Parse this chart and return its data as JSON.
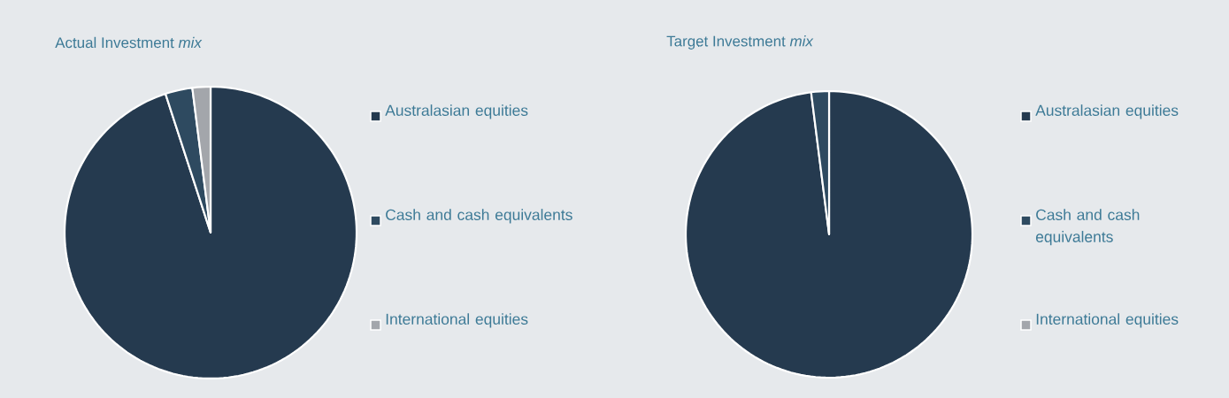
{
  "chart_data": [
    {
      "type": "pie",
      "title": "Actual Investment *mix*",
      "categories": [
        "Australasian equities",
        "Cash and cash equivalents",
        "International equities"
      ],
      "values": [
        95,
        3,
        2
      ],
      "colors": [
        "#253a4f",
        "#2e4a60",
        "#a3a6ab"
      ],
      "legend": "right"
    },
    {
      "type": "pie",
      "title": "Target Investment *mix*",
      "categories": [
        "Australasian equities",
        "Cash and cash equivalents",
        "International equities"
      ],
      "values": [
        98,
        2,
        0
      ],
      "colors": [
        "#253a4f",
        "#2e4a60",
        "#a3a6ab"
      ],
      "legend": "right"
    }
  ]
}
